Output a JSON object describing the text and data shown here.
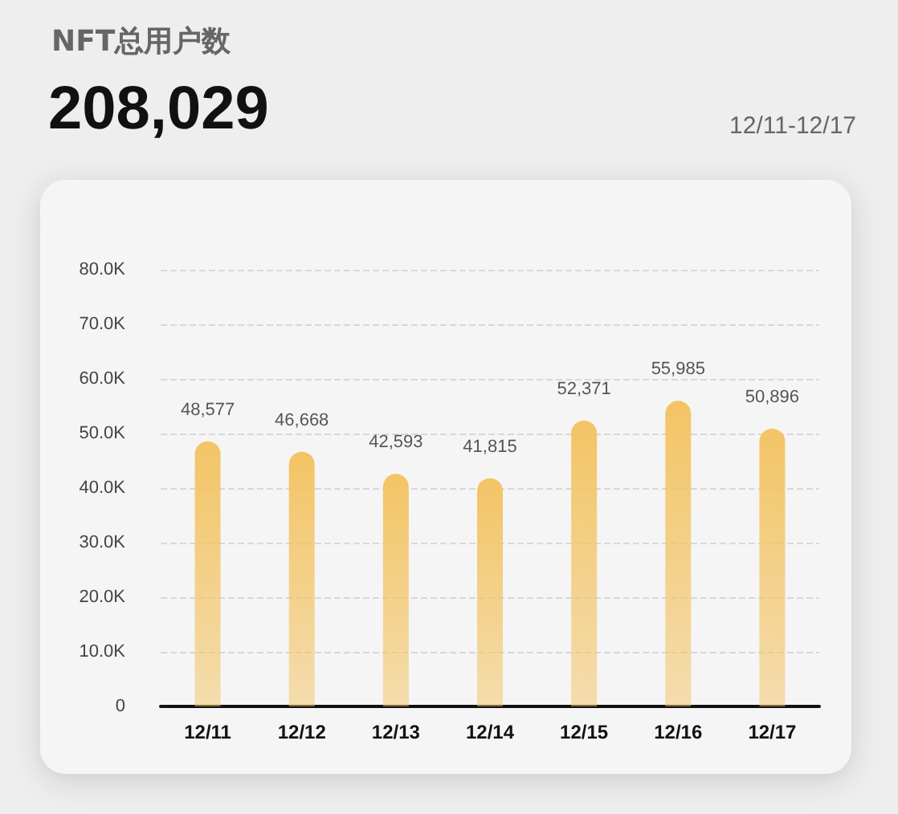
{
  "chart_data": {
    "type": "bar",
    "title": "NFT总用户数",
    "subtitle": "208,029",
    "annotations": [
      "12/11-12/17"
    ],
    "categories": [
      "12/11",
      "12/12",
      "12/13",
      "12/14",
      "12/15",
      "12/16",
      "12/17"
    ],
    "values": [
      48577,
      46668,
      42593,
      41815,
      52371,
      55985,
      50896
    ],
    "color": "#f3c465",
    "ylim": [
      0,
      80000
    ],
    "yticks": [
      0,
      {
        "value": 10000,
        "label": "10.0K"
      },
      {
        "value": 20000,
        "label": "20.0K"
      },
      {
        "value": 30000,
        "label": "30.0K"
      },
      {
        "value": 40000,
        "label": "40.0K"
      },
      {
        "value": 50000,
        "label": "50.0K"
      },
      {
        "value": 60000,
        "label": "60.0K"
      },
      {
        "value": 70000,
        "label": "70.0K"
      },
      {
        "value": 80000,
        "label": "80.0K"
      }
    ],
    "value_labels": [
      "48,577",
      "46,668",
      "42,593",
      "41,815",
      "52,371",
      "55,985",
      "50,896"
    ],
    "grid": "y"
  }
}
